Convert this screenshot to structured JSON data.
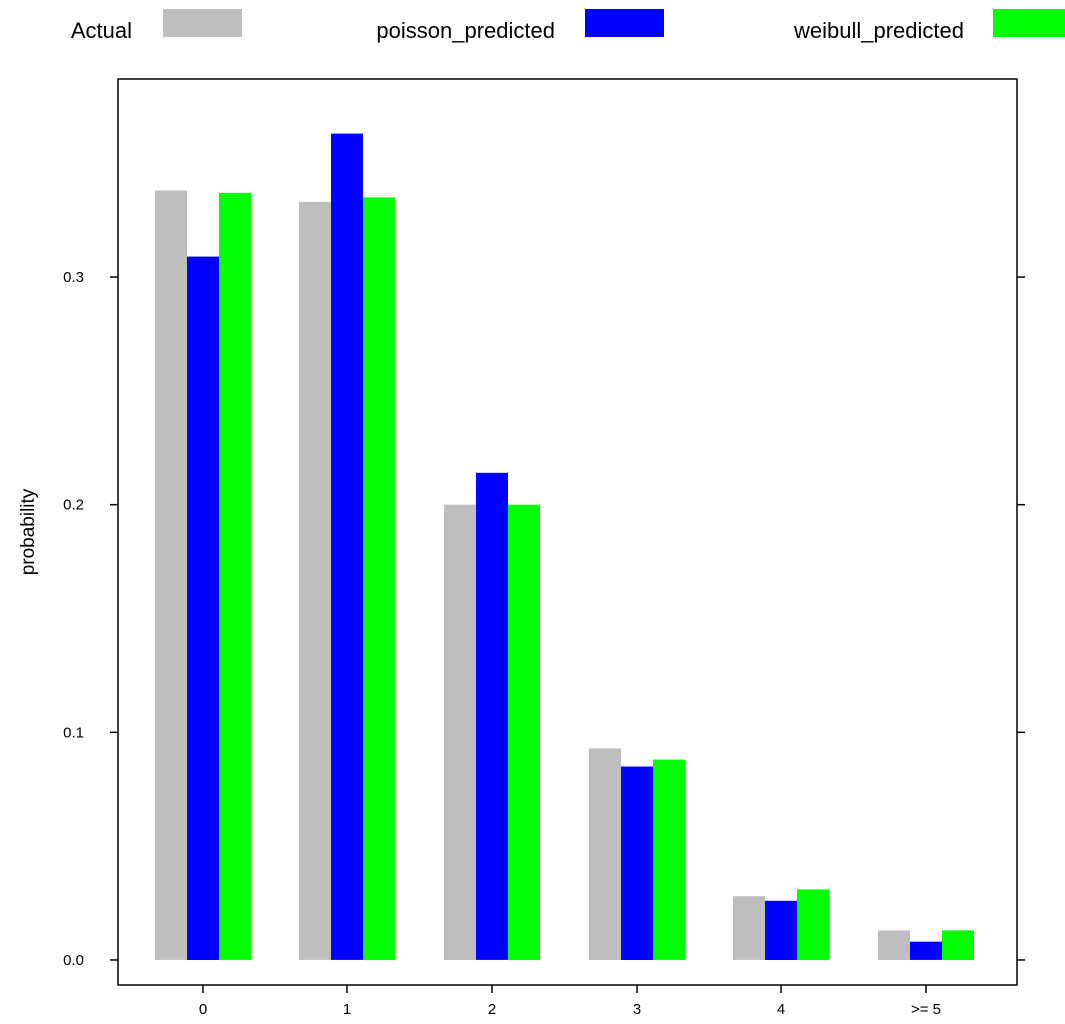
{
  "chart_data": {
    "type": "bar",
    "title": "",
    "xlabel": "",
    "ylabel": "probability",
    "categories": [
      "0",
      "1",
      "2",
      "3",
      "4",
      ">= 5"
    ],
    "series": [
      {
        "name": "Actual",
        "color": "#bebebe",
        "values": [
          0.338,
          0.333,
          0.2,
          0.093,
          0.028,
          0.013
        ]
      },
      {
        "name": "poisson_predicted",
        "color": "#0000ff",
        "values": [
          0.309,
          0.363,
          0.214,
          0.085,
          0.026,
          0.008
        ]
      },
      {
        "name": "weibull_predicted",
        "color": "#00ff00",
        "values": [
          0.337,
          0.335,
          0.2,
          0.088,
          0.031,
          0.013
        ]
      }
    ],
    "ylim": [
      -0.011,
      0.387
    ],
    "yticks": [
      "0.0",
      "0.1",
      "0.2",
      "0.3"
    ],
    "legend_position": "top",
    "grid": false
  }
}
